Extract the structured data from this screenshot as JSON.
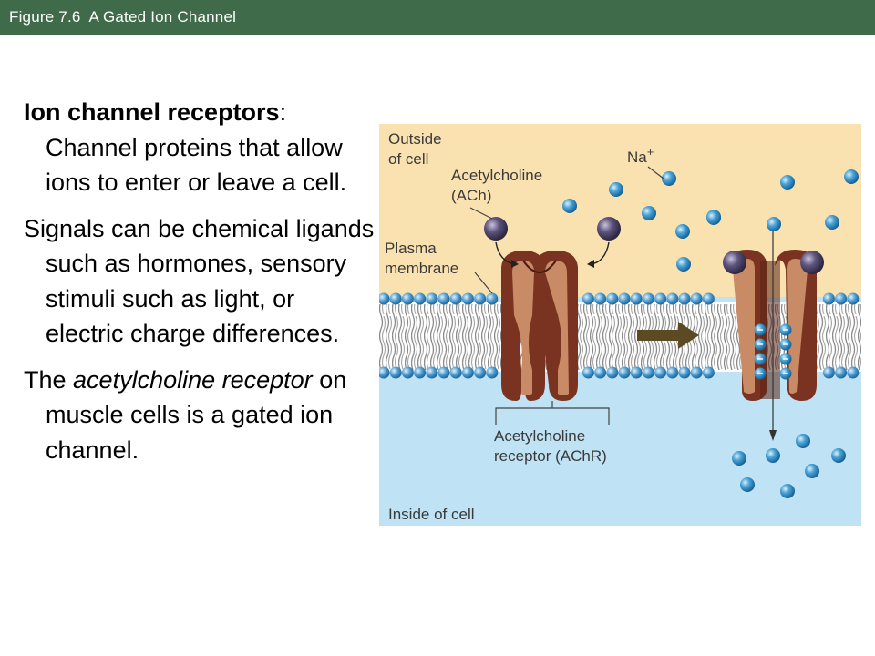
{
  "header": {
    "title": "Figure 7.6  A Gated Ion Channel",
    "bar_color": "#3f6b4a"
  },
  "body": {
    "p1": {
      "term": "Ion channel receptors",
      "colon": ":",
      "text": "Channel proteins that allow ions to enter or leave a cell."
    },
    "p2": {
      "text": "Signals can be chemical ligands such as hormones, sensory stimuli such as light, or electric charge differences."
    },
    "p3": {
      "pre": "The ",
      "italic": "acetylcholine receptor",
      "post": " on muscle cells is a gated ion channel."
    }
  },
  "figure": {
    "labels": {
      "outside_1": "Outside",
      "outside_2": "of cell",
      "ach_1": "Acetylcholine",
      "ach_2": "(ACh)",
      "na": "Na",
      "na_sup": "+",
      "plasma_1": "Plasma",
      "plasma_2": "membrane",
      "achr_1": "Acetylcholine",
      "achr_2": "receptor (AChR)",
      "inside": "Inside of cell"
    },
    "colors": {
      "outside": "#fae2b0",
      "inside": "#bfe2f4",
      "head": "#4e9bd0",
      "receptor": "#7a3320",
      "receptor_light": "#c98a66",
      "ligand": "#5a4f78",
      "ion": "#3e97cd",
      "arrow": "#5b4a22"
    }
  }
}
